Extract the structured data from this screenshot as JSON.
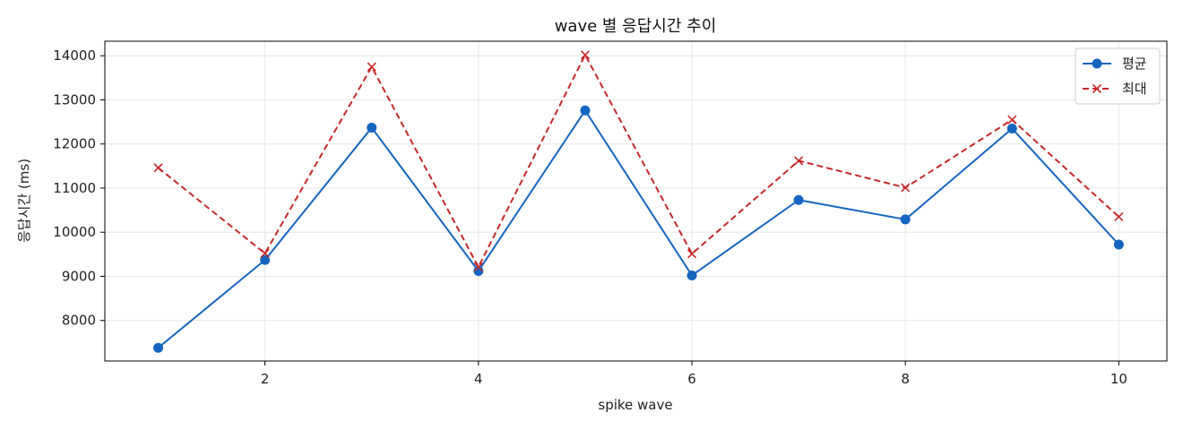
{
  "chart_data": {
    "type": "line",
    "title": "wave 별 응답시간 추이",
    "xlabel": "spike wave",
    "ylabel": "응답시간 (ms)",
    "x": [
      1,
      2,
      3,
      4,
      5,
      6,
      7,
      8,
      9,
      10
    ],
    "xlim": [
      0.5,
      10.45
    ],
    "ylim": [
      7080,
      14330
    ],
    "x_ticks": [
      2,
      4,
      6,
      8,
      10
    ],
    "y_ticks": [
      8000,
      9000,
      10000,
      11000,
      12000,
      13000,
      14000
    ],
    "grid": true,
    "legend_position": "top-right",
    "series": [
      {
        "name": "평균",
        "color": "#1565c0",
        "line_style": "solid",
        "marker": "circle",
        "values": [
          7380,
          9370,
          12370,
          9120,
          12760,
          9020,
          10730,
          10290,
          12350,
          9720
        ]
      },
      {
        "name": "최대",
        "color": "#c62828",
        "line_style": "dashed",
        "marker": "x",
        "values": [
          11460,
          9520,
          13750,
          9210,
          14020,
          9510,
          11620,
          11010,
          12550,
          10350
        ]
      }
    ]
  }
}
